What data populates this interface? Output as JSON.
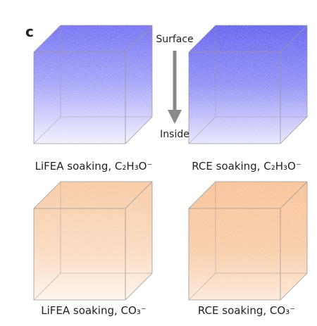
{
  "panel_label": "c",
  "arrow": {
    "top_label": "Surface",
    "bottom_label": "Inside"
  },
  "panels": [
    {
      "caption": "LiFEA soaking, C₂H₃O⁻"
    },
    {
      "caption": "RCE soaking, C₂H₃O⁻"
    },
    {
      "caption": "LiFEA soaking, CO₃⁻"
    },
    {
      "caption": "RCE soaking, CO₃⁻"
    }
  ]
}
